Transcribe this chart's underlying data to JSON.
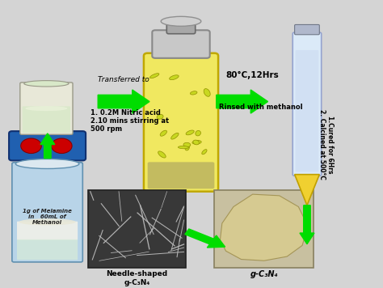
{
  "bg_color": "#d4d4d4",
  "arrow_color": "#00dd00",
  "text_color": "#000000",
  "label_transferred": "Transferred to",
  "label_80c": "80°C,12Hrs",
  "label_rinsed": "Rinsed with methanol",
  "label_needle": "Needle-shaped\ng-C₃N₄",
  "label_gcn4": "g-C₃N₄",
  "label_beaker": "1g of Melamine\nin   60mL of\nMethanol",
  "label_stirrer": "1. 0.2M Nitric acid\n2.10 mins stirring at\n500 rpm",
  "label_calcined": "1.Cured for 6Hrs\n2. Calcined at 500°C",
  "fig_width": 4.74,
  "fig_height": 3.56,
  "dpi": 100
}
